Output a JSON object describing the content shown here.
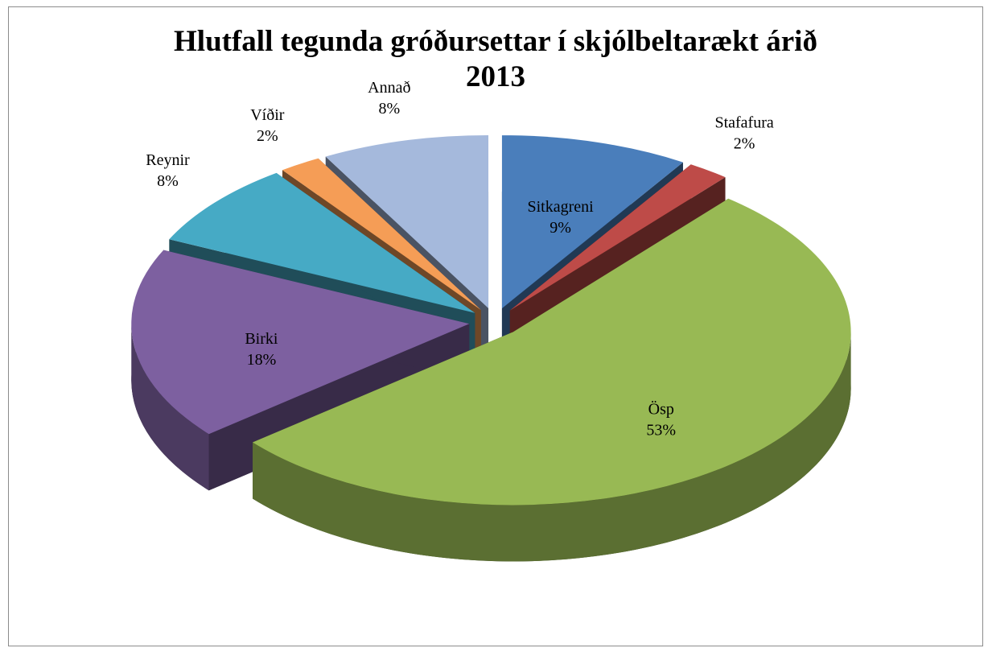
{
  "chart_data": {
    "type": "pie",
    "title": "Hlutfall tegunda gróðursettar í skjólbeltarækt árið 2013",
    "categories": [
      "Sitkagreni",
      "Stafafura",
      "Ösp",
      "Birki",
      "Reynir",
      "Víðir",
      "Annað"
    ],
    "values": [
      9,
      2,
      53,
      18,
      8,
      2,
      8
    ],
    "value_labels": [
      "9%",
      "2%",
      "53%",
      "18%",
      "8%",
      "2%",
      "8%"
    ],
    "colors": [
      "#4a7ebb",
      "#be4b48",
      "#98b954",
      "#7d60a0",
      "#46aac5",
      "#f59d56",
      "#a5b9dc"
    ]
  }
}
